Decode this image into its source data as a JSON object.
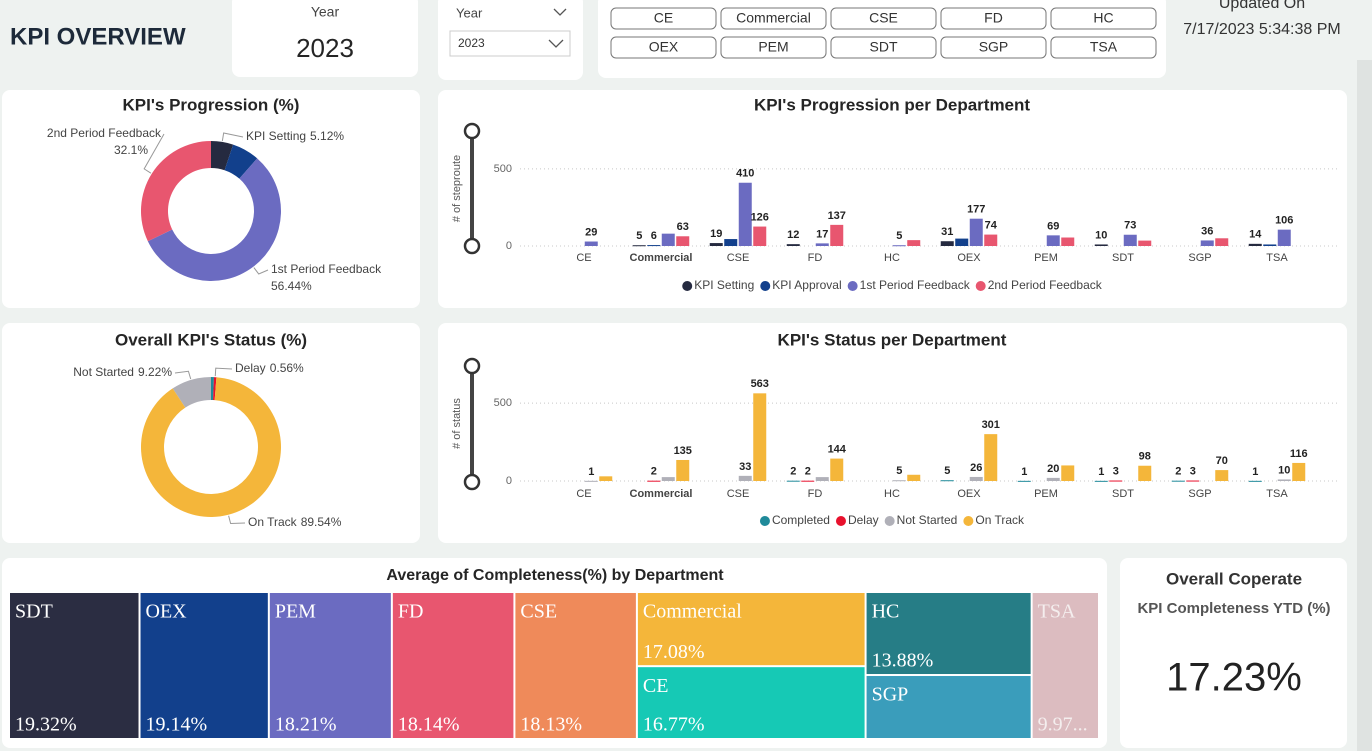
{
  "header": {
    "title": "KPI OVERVIEW",
    "updated_label": "Updated On",
    "updated_value": "7/17/2023 5:34:38 PM"
  },
  "year_card": {
    "label": "Year",
    "value": "2023"
  },
  "year_slicer": {
    "label": "Year",
    "selected": "2023"
  },
  "filters": {
    "buttons": [
      "CE",
      "Commercial",
      "CSE",
      "FD",
      "HC",
      "OEX",
      "PEM",
      "SDT",
      "SGP",
      "TSA"
    ]
  },
  "chart_data": [
    {
      "type": "donut",
      "title": "KPI's Progression (%)",
      "categories": [
        "KPI Setting",
        null,
        "1st Period Feedback",
        "2nd Period Feedback"
      ],
      "values": [
        5.12,
        6.34,
        56.44,
        32.1
      ],
      "value_labels": [
        "5.12%",
        null,
        "56.44%",
        "32.1%"
      ],
      "colors": [
        "#252a40",
        "#12408c",
        "#6b6bc1",
        "#e8566f"
      ]
    },
    {
      "type": "bar",
      "title": "KPI's Progression per Department",
      "y_label": "# of steproute",
      "categories": [
        "CE",
        "Commercial",
        "CSE",
        "FD",
        "HC",
        "OEX",
        "PEM",
        "SDT",
        "SGP",
        "TSA"
      ],
      "ylim": [
        0,
        700
      ],
      "yticks": [
        0,
        500
      ],
      "grid": true,
      "series": [
        {
          "name": "KPI Setting",
          "color": "#252a40",
          "values": [
            null,
            5,
            19,
            12,
            null,
            31,
            null,
            10,
            null,
            14
          ],
          "value_labels": [
            null,
            "5",
            "19",
            "12",
            null,
            "31",
            null,
            "10",
            null,
            "14"
          ]
        },
        {
          "name": "KPI Approval",
          "color": "#12408c",
          "values": [
            null,
            6,
            45,
            null,
            null,
            48,
            null,
            null,
            null,
            10
          ],
          "value_labels": [
            null,
            "6",
            null,
            null,
            null,
            null,
            null,
            null,
            null,
            null
          ]
        },
        {
          "name": "1st Period Feedback",
          "color": "#6b6bc1",
          "values": [
            29,
            80,
            410,
            17,
            5,
            177,
            69,
            73,
            36,
            106
          ],
          "value_labels": [
            "29",
            null,
            "410",
            "17",
            "5",
            "177",
            "69",
            "73",
            "36",
            "106"
          ]
        },
        {
          "name": "2nd Period Feedback",
          "color": "#e8566f",
          "values": [
            null,
            63,
            126,
            137,
            38,
            74,
            55,
            35,
            50,
            null
          ],
          "value_labels": [
            null,
            "63",
            "126",
            "137",
            null,
            "74",
            null,
            null,
            null,
            null
          ]
        }
      ]
    },
    {
      "type": "donut",
      "title": "Overall KPI's Status (%)",
      "categories": [
        "Not Started",
        null,
        "Delay",
        "On Track"
      ],
      "values": [
        9.22,
        0.68,
        0.56,
        89.54
      ],
      "value_labels": [
        "9.22%",
        null,
        "0.56%",
        "89.54%"
      ],
      "colors": [
        "#b0b0b8",
        "#1f8a9a",
        "#e8112d",
        "#f4b63a"
      ]
    },
    {
      "type": "bar",
      "title": "KPI's Status per Department",
      "y_label": "# of status",
      "categories": [
        "CE",
        "Commercial",
        "CSE",
        "FD",
        "HC",
        "OEX",
        "PEM",
        "SDT",
        "SGP",
        "TSA"
      ],
      "ylim": [
        0,
        700
      ],
      "yticks": [
        0,
        500
      ],
      "grid": true,
      "series": [
        {
          "name": "Completed",
          "color": "#1f8a9a",
          "values": [
            null,
            null,
            null,
            2,
            null,
            5,
            1,
            1,
            2,
            1
          ],
          "value_labels": [
            null,
            null,
            null,
            "2",
            null,
            "5",
            "1",
            "1",
            "2",
            "1"
          ]
        },
        {
          "name": "Delay",
          "color": "#e8112d",
          "values": [
            null,
            2,
            null,
            2,
            null,
            null,
            null,
            3,
            3,
            null
          ],
          "value_labels": [
            null,
            "2",
            null,
            "2",
            null,
            null,
            null,
            "3",
            "3",
            null
          ]
        },
        {
          "name": "Not Started",
          "color": "#b0b0b8",
          "values": [
            1,
            25,
            33,
            25,
            5,
            26,
            20,
            null,
            null,
            10
          ],
          "value_labels": [
            "1",
            null,
            "33",
            null,
            "5",
            "26",
            "20",
            null,
            null,
            "10"
          ]
        },
        {
          "name": "On Track",
          "color": "#f4b63a",
          "values": [
            30,
            135,
            563,
            144,
            40,
            301,
            100,
            98,
            70,
            116
          ],
          "value_labels": [
            null,
            "135",
            "563",
            "144",
            null,
            "301",
            null,
            "98",
            "70",
            "116"
          ]
        }
      ]
    },
    {
      "type": "treemap",
      "title": "Average of Completeness(%) by Department",
      "categories": [
        "SDT",
        "OEX",
        "PEM",
        "FD",
        "CSE",
        "Commercial",
        "CE",
        "HC",
        "SGP",
        "TSA"
      ],
      "values": [
        19.32,
        19.14,
        18.21,
        18.14,
        18.13,
        17.08,
        16.77,
        13.88,
        10.7,
        9.97
      ],
      "value_labels": [
        "19.32%",
        "19.14%",
        "18.21%",
        "18.14%",
        "18.13%",
        "17.08%",
        "16.77%",
        "13.88%",
        null,
        "9.97..."
      ],
      "colors": [
        "#2b2d42",
        "#12408c",
        "#6b6bc1",
        "#e8566f",
        "#ef8a5a",
        "#f4b63a",
        "#16c9b5",
        "#267d86",
        "#3a9dbb",
        "#dcbcc0"
      ]
    }
  ],
  "kpi_card": {
    "title": "Overall Coperate",
    "subtitle": "KPI Completeness YTD (%)",
    "value": "17.23%"
  }
}
